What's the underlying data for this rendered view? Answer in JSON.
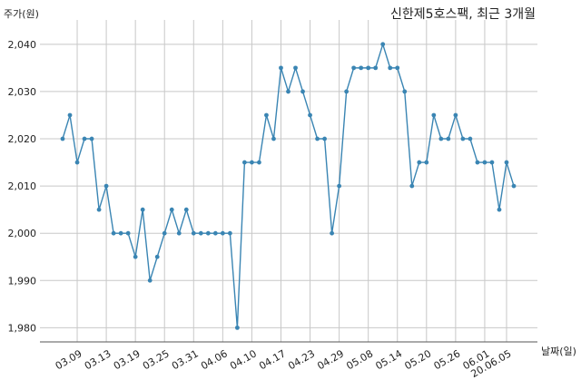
{
  "chart_data": {
    "type": "line",
    "title": "신한제5호스팩, 최근 3개월",
    "ylabel": "주가(원)",
    "xlabel": "날짜(일)",
    "ylim": [
      1977,
      2044
    ],
    "y_ticks": [
      1980,
      1990,
      2000,
      2010,
      2020,
      2030,
      2040
    ],
    "y_tick_labels": [
      "1,980",
      "1,990",
      "2,000",
      "2,010",
      "2,020",
      "2,030",
      "2,040"
    ],
    "x_tick_labels": [
      "03.09",
      "03.13",
      "03.19",
      "03.25",
      "03.31",
      "04.06",
      "04.10",
      "04.17",
      "04.23",
      "04.29",
      "05.08",
      "05.14",
      "05.20",
      "05.26",
      "06.01",
      "20.06.05"
    ],
    "x_tick_indices": [
      2,
      6,
      10,
      14,
      18,
      22,
      26,
      30,
      34,
      38,
      42,
      46,
      50,
      54,
      58,
      61
    ],
    "grid": true,
    "line_color": "#3a85b3",
    "series": [
      {
        "values": [
          2020,
          2025,
          2015,
          2020,
          2020,
          2005,
          2010,
          2000,
          2000,
          2000,
          1995,
          2005,
          1990,
          1995,
          2000,
          2005,
          2000,
          2005,
          2000,
          2000,
          2000,
          2000,
          2000,
          2000,
          1980,
          2015,
          2015,
          2015,
          2025,
          2020,
          2035,
          2030,
          2035,
          2030,
          2025,
          2020,
          2020,
          2000,
          2010,
          2030,
          2035,
          2035,
          2035,
          2035,
          2040,
          2035,
          2035,
          2030,
          2010,
          2015,
          2015,
          2025,
          2020,
          2020,
          2025,
          2020,
          2020,
          2015,
          2015,
          2015,
          2005,
          2015,
          2010
        ]
      }
    ]
  }
}
